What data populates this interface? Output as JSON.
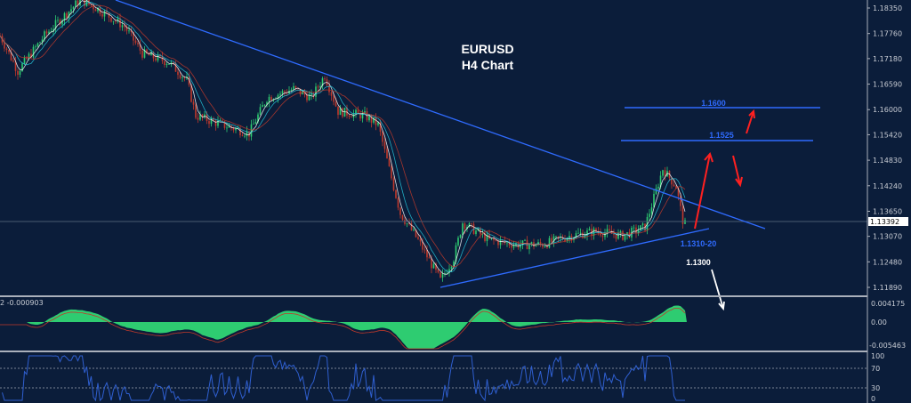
{
  "chart_data": {
    "type": "candlestick",
    "title": "EURUSD",
    "subtitle": "H4 Chart",
    "colors": {
      "background": "#0b1d3a",
      "up": "#2ecc71",
      "down": "#c0392b",
      "trendline": "#2f6bff",
      "arrow_up": "#ff2020",
      "arrow_down_white": "#ffffff",
      "macd_hist": "#2ecc71",
      "rsi": "#2f5fd0"
    },
    "price_axis_ticks": [
      "1.18350",
      "1.17760",
      "1.17180",
      "1.16590",
      "1.16000",
      "1.15420",
      "1.14830",
      "1.14240",
      "1.13650",
      "1.13070",
      "1.12480",
      "1.11890"
    ],
    "ylim": [
      1.1175,
      1.186
    ],
    "current_price": "1.13392",
    "approx_close_path": [
      1.1771,
      1.1689,
      1.1771,
      1.1854,
      1.1833,
      1.1792,
      1.173,
      1.1709,
      1.1668,
      1.1586,
      1.1565,
      1.1545,
      1.1627,
      1.1648,
      1.1627,
      1.1679,
      1.1596,
      1.1586,
      1.1565,
      1.1442,
      1.136,
      1.1298,
      1.1205,
      1.1257,
      1.1339,
      1.1298,
      1.1288,
      1.1288,
      1.1308,
      1.1319,
      1.1308,
      1.1329,
      1.1463,
      1.1422,
      1.1339,
      1.1329
    ],
    "levels": [
      {
        "label": "1.1600",
        "price": 1.16
      },
      {
        "label": "1.1525",
        "price": 1.1525
      }
    ],
    "annotations": {
      "support": "1.1310-20",
      "target_down": "1.1300"
    },
    "macd": {
      "label": "2 -0.000903",
      "ticks": [
        "0.004175",
        "0.00",
        "-0.005463"
      ]
    },
    "rsi": {
      "ticks": [
        "100",
        "70",
        "30",
        "0"
      ]
    }
  }
}
